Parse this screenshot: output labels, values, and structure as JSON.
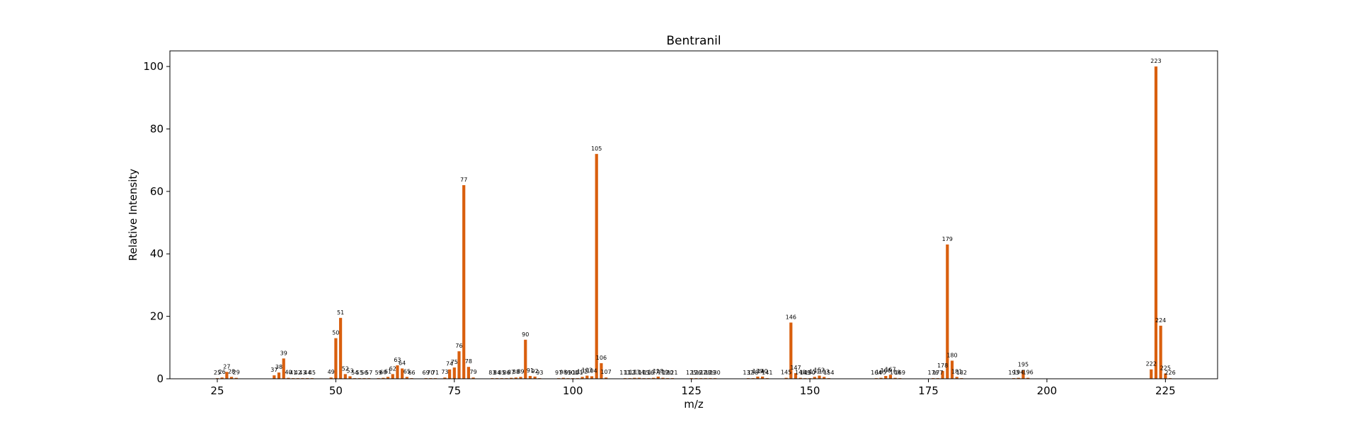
{
  "chart_data": {
    "type": "bar",
    "title": "Bentranil",
    "xlabel": "m/z",
    "ylabel": "Relative Intensity",
    "xlim": [
      15,
      236
    ],
    "ylim": [
      0,
      105
    ],
    "x_ticks": [
      25,
      50,
      75,
      100,
      125,
      150,
      175,
      200,
      225
    ],
    "y_ticks": [
      0,
      20,
      40,
      60,
      80,
      100
    ],
    "grid": false,
    "legend": "none",
    "bar_color": "#d95f0e",
    "peaks": [
      {
        "mz": 25,
        "intensity": 0.2
      },
      {
        "mz": 26,
        "intensity": 0.4
      },
      {
        "mz": 27,
        "intensity": 2.2
      },
      {
        "mz": 28,
        "intensity": 0.6
      },
      {
        "mz": 29,
        "intensity": 0.3
      },
      {
        "mz": 37,
        "intensity": 1.1
      },
      {
        "mz": 38,
        "intensity": 2.0
      },
      {
        "mz": 39,
        "intensity": 6.5
      },
      {
        "mz": 40,
        "intensity": 0.3
      },
      {
        "mz": 41,
        "intensity": 0.2
      },
      {
        "mz": 42,
        "intensity": 0.2
      },
      {
        "mz": 43,
        "intensity": 0.2
      },
      {
        "mz": 44,
        "intensity": 0.2
      },
      {
        "mz": 45,
        "intensity": 0.2
      },
      {
        "mz": 49,
        "intensity": 0.4
      },
      {
        "mz": 50,
        "intensity": 13.0
      },
      {
        "mz": 51,
        "intensity": 19.5
      },
      {
        "mz": 52,
        "intensity": 1.5
      },
      {
        "mz": 53,
        "intensity": 0.8
      },
      {
        "mz": 54,
        "intensity": 0.2
      },
      {
        "mz": 55,
        "intensity": 0.2
      },
      {
        "mz": 56,
        "intensity": 0.2
      },
      {
        "mz": 57,
        "intensity": 0.2
      },
      {
        "mz": 59,
        "intensity": 0.2
      },
      {
        "mz": 60,
        "intensity": 0.3
      },
      {
        "mz": 61,
        "intensity": 0.6
      },
      {
        "mz": 62,
        "intensity": 1.5
      },
      {
        "mz": 63,
        "intensity": 4.3
      },
      {
        "mz": 64,
        "intensity": 3.3
      },
      {
        "mz": 65,
        "intensity": 0.6
      },
      {
        "mz": 66,
        "intensity": 0.2
      },
      {
        "mz": 69,
        "intensity": 0.2
      },
      {
        "mz": 70,
        "intensity": 0.2
      },
      {
        "mz": 71,
        "intensity": 0.2
      },
      {
        "mz": 73,
        "intensity": 0.4
      },
      {
        "mz": 74,
        "intensity": 3.0
      },
      {
        "mz": 75,
        "intensity": 3.6
      },
      {
        "mz": 76,
        "intensity": 8.8
      },
      {
        "mz": 77,
        "intensity": 62.0
      },
      {
        "mz": 78,
        "intensity": 3.8
      },
      {
        "mz": 79,
        "intensity": 0.4
      },
      {
        "mz": 83,
        "intensity": 0.2
      },
      {
        "mz": 84,
        "intensity": 0.2
      },
      {
        "mz": 85,
        "intensity": 0.2
      },
      {
        "mz": 86,
        "intensity": 0.2
      },
      {
        "mz": 87,
        "intensity": 0.3
      },
      {
        "mz": 88,
        "intensity": 0.4
      },
      {
        "mz": 89,
        "intensity": 0.6
      },
      {
        "mz": 90,
        "intensity": 12.5
      },
      {
        "mz": 91,
        "intensity": 0.9
      },
      {
        "mz": 92,
        "intensity": 0.7
      },
      {
        "mz": 93,
        "intensity": 0.2
      },
      {
        "mz": 97,
        "intensity": 0.2
      },
      {
        "mz": 98,
        "intensity": 0.3
      },
      {
        "mz": 99,
        "intensity": 0.2
      },
      {
        "mz": 100,
        "intensity": 0.2
      },
      {
        "mz": 101,
        "intensity": 0.2
      },
      {
        "mz": 102,
        "intensity": 0.6
      },
      {
        "mz": 103,
        "intensity": 1.0
      },
      {
        "mz": 104,
        "intensity": 0.8
      },
      {
        "mz": 105,
        "intensity": 72.0
      },
      {
        "mz": 106,
        "intensity": 5.0
      },
      {
        "mz": 107,
        "intensity": 0.4
      },
      {
        "mz": 111,
        "intensity": 0.2
      },
      {
        "mz": 112,
        "intensity": 0.2
      },
      {
        "mz": 113,
        "intensity": 0.3
      },
      {
        "mz": 114,
        "intensity": 0.3
      },
      {
        "mz": 115,
        "intensity": 0.2
      },
      {
        "mz": 116,
        "intensity": 0.2
      },
      {
        "mz": 117,
        "intensity": 0.3
      },
      {
        "mz": 118,
        "intensity": 0.7
      },
      {
        "mz": 119,
        "intensity": 0.3
      },
      {
        "mz": 120,
        "intensity": 0.2
      },
      {
        "mz": 121,
        "intensity": 0.2
      },
      {
        "mz": 125,
        "intensity": 0.2
      },
      {
        "mz": 126,
        "intensity": 0.2
      },
      {
        "mz": 127,
        "intensity": 0.2
      },
      {
        "mz": 128,
        "intensity": 0.2
      },
      {
        "mz": 129,
        "intensity": 0.2
      },
      {
        "mz": 130,
        "intensity": 0.2
      },
      {
        "mz": 137,
        "intensity": 0.2
      },
      {
        "mz": 138,
        "intensity": 0.2
      },
      {
        "mz": 139,
        "intensity": 0.7
      },
      {
        "mz": 140,
        "intensity": 0.7
      },
      {
        "mz": 141,
        "intensity": 0.2
      },
      {
        "mz": 145,
        "intensity": 0.3
      },
      {
        "mz": 146,
        "intensity": 18.0
      },
      {
        "mz": 147,
        "intensity": 1.8
      },
      {
        "mz": 148,
        "intensity": 0.3
      },
      {
        "mz": 149,
        "intensity": 0.2
      },
      {
        "mz": 150,
        "intensity": 0.2
      },
      {
        "mz": 151,
        "intensity": 0.6
      },
      {
        "mz": 152,
        "intensity": 1.0
      },
      {
        "mz": 153,
        "intensity": 0.6
      },
      {
        "mz": 154,
        "intensity": 0.2
      },
      {
        "mz": 164,
        "intensity": 0.2
      },
      {
        "mz": 165,
        "intensity": 0.3
      },
      {
        "mz": 166,
        "intensity": 0.9
      },
      {
        "mz": 167,
        "intensity": 1.3
      },
      {
        "mz": 168,
        "intensity": 0.3
      },
      {
        "mz": 169,
        "intensity": 0.2
      },
      {
        "mz": 176,
        "intensity": 0.2
      },
      {
        "mz": 177,
        "intensity": 0.2
      },
      {
        "mz": 178,
        "intensity": 2.5
      },
      {
        "mz": 179,
        "intensity": 43.0
      },
      {
        "mz": 180,
        "intensity": 5.8
      },
      {
        "mz": 181,
        "intensity": 0.6
      },
      {
        "mz": 182,
        "intensity": 0.2
      },
      {
        "mz": 193,
        "intensity": 0.2
      },
      {
        "mz": 194,
        "intensity": 0.3
      },
      {
        "mz": 195,
        "intensity": 2.8
      },
      {
        "mz": 196,
        "intensity": 0.3
      },
      {
        "mz": 222,
        "intensity": 3.0
      },
      {
        "mz": 223,
        "intensity": 100.0
      },
      {
        "mz": 224,
        "intensity": 17.0
      },
      {
        "mz": 225,
        "intensity": 1.7
      },
      {
        "mz": 226,
        "intensity": 0.2
      }
    ]
  }
}
